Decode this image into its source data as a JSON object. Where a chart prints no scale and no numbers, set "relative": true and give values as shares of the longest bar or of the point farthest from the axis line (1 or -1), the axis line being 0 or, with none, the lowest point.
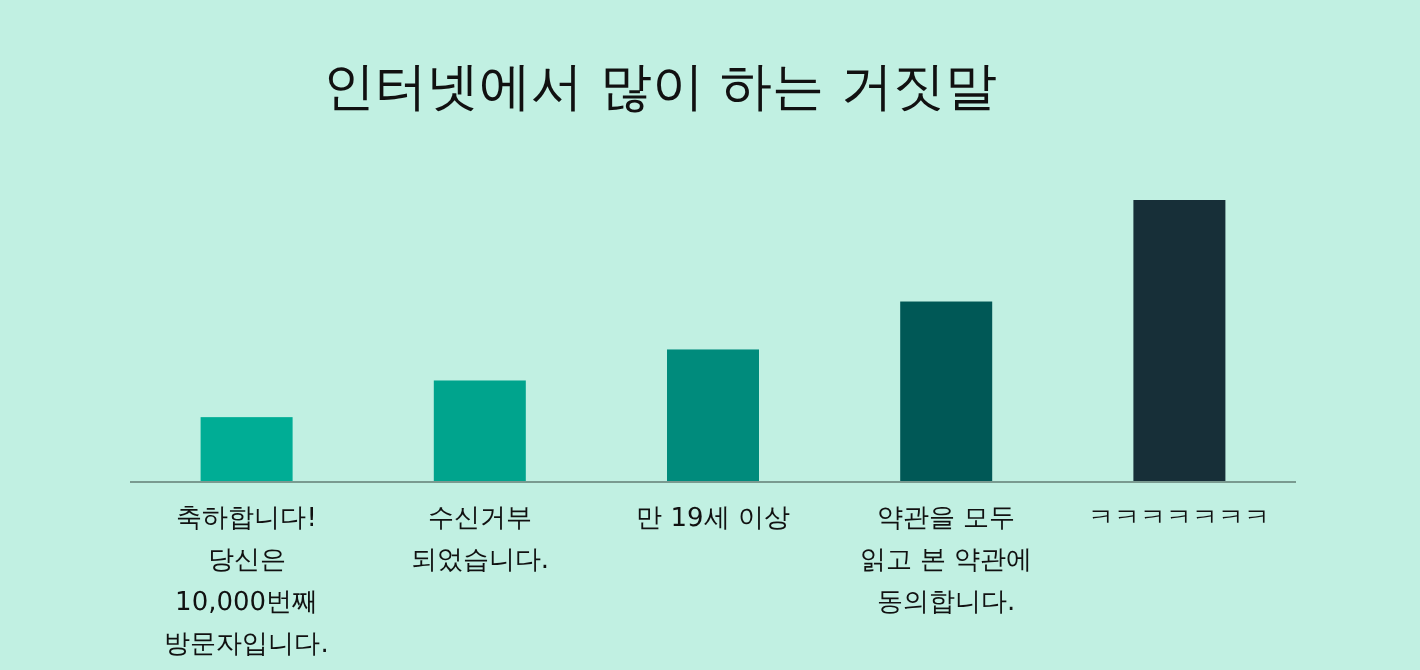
{
  "chart_data": {
    "type": "bar",
    "title": "인터넷에서 많이 하는 거짓말",
    "relative": true,
    "categories": [
      "축하합니다!\n당신은\n10,000번째\n방문자입니다.",
      "수신거부\n되었습니다.",
      "만 19세 이상",
      "약관을 모두\n읽고 본 약관에\n동의합니다.",
      "ㅋㅋㅋㅋㅋㅋㅋ"
    ],
    "values": [
      0.23,
      0.36,
      0.47,
      0.64,
      1
    ],
    "colors": [
      "#00ad95",
      "#00a48d",
      "#008b7c",
      "#005856",
      "#172f38"
    ]
  }
}
